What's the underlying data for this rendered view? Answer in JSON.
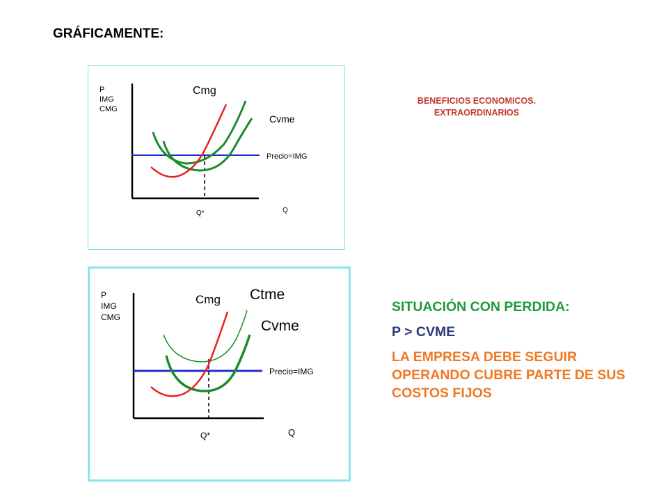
{
  "page": {
    "title": "GRÁFICAMENTE:"
  },
  "chart_top": {
    "ylabel_lines": [
      "P",
      "IMG",
      "CMG"
    ],
    "labels": {
      "cmg": "Cmg",
      "cvme": "Cvme",
      "precio": "Precio=IMG",
      "qstar": "Q*",
      "q": "Q"
    }
  },
  "chart_bottom": {
    "ylabel_lines": [
      "P",
      "IMG",
      "CMG"
    ],
    "labels": {
      "cmg": "Cmg",
      "ctme": "Ctme",
      "cvme": "Cvme",
      "precio": "Precio=IMG",
      "qstar": "Q*",
      "q": "Q"
    }
  },
  "notes": {
    "top_lines": [
      "BENEFICIOS ECONOMICOS.",
      "EXTRAORDINARIOS"
    ],
    "bottom": {
      "heading": "SITUACIÓN CON PERDIDA:",
      "condition": "P > CVME",
      "conclusion": "LA EMPRESA DEBE SEGUIR OPERANDO CUBRE PARTE DE SUS COSTOS FIJOS"
    }
  },
  "colors": {
    "cmg_curve": "#e8201e",
    "cost_curves": "#1a8c2a",
    "price_line": "#1f2fd0",
    "axis": "#000000",
    "box_border": "#8ae4ee"
  }
}
